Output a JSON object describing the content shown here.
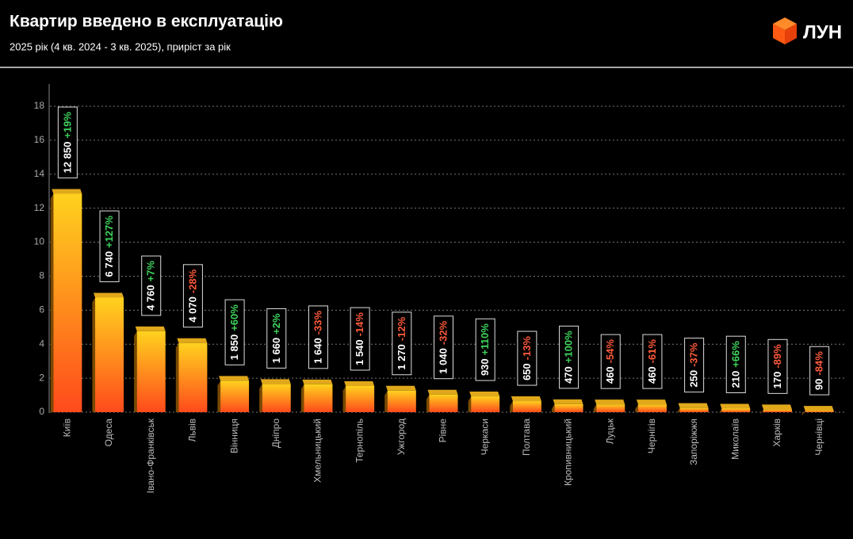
{
  "brand": "ЛУН",
  "chart_data": {
    "type": "bar",
    "title": "Квартир введено в експлуатацію",
    "subtitle": "2025 рік (4 кв. 2024 - 3 кв. 2025), приріст за рік",
    "categories": [
      "Київ",
      "Одеса",
      "Івано-Франківськ",
      "Львів",
      "Вінниця",
      "Дніпро",
      "Хмельницький",
      "Тернопіль",
      "Ужгород",
      "Рівне",
      "Черкаси",
      "Полтава",
      "Кропивницький",
      "Луцьк",
      "Чернігів",
      "Запоріжжя",
      "Миколаїв",
      "Харків",
      "Чернівці"
    ],
    "values": [
      12.85,
      6.74,
      4.76,
      4.07,
      1.85,
      1.66,
      1.64,
      1.54,
      1.27,
      1.04,
      0.93,
      0.65,
      0.47,
      0.46,
      0.46,
      0.25,
      0.21,
      0.17,
      0.09
    ],
    "value_labels": [
      "12 850",
      "6 740",
      "4 760",
      "4 070",
      "1 850",
      "1 660",
      "1 640",
      "1 540",
      "1 270",
      "1 040",
      "930",
      "650",
      "470",
      "460",
      "460",
      "250",
      "210",
      "170",
      "90"
    ],
    "changes": [
      "+19%",
      "+127%",
      "+7%",
      "-28%",
      "+60%",
      "+2%",
      "-33%",
      "-14%",
      "-12%",
      "-32%",
      "+110%",
      "-13%",
      "+100%",
      "-54%",
      "-61%",
      "-37%",
      "+66%",
      "-89%",
      "-84%"
    ],
    "positive_color": "#3fd45c",
    "negative_color": "#ff5a3a",
    "ylim": [
      0,
      18
    ],
    "yticks": [
      0,
      2,
      4,
      6,
      8,
      10,
      12,
      14,
      16,
      18
    ],
    "grid": true
  }
}
